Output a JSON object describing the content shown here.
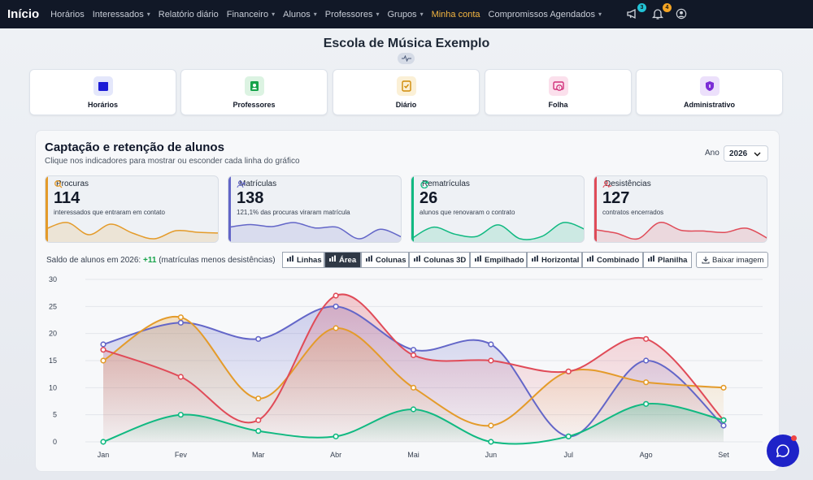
{
  "nav": {
    "brand": "Início",
    "items": [
      "Horários",
      "Interessados",
      "Relatório diário",
      "Financeiro",
      "Alunos",
      "Professores",
      "Grupos",
      "Minha conta",
      "Compromissos Agendados"
    ],
    "dropdown": [
      false,
      true,
      false,
      true,
      true,
      true,
      true,
      false,
      true
    ],
    "accent_index": 7,
    "announce_badge": "3",
    "bell_badge": "4"
  },
  "page": {
    "title": "Escola de Música Exemplo"
  },
  "quick_cards": [
    {
      "label": "Horários",
      "icon": "calendar-icon",
      "color": "#1d1dd6",
      "bg": "#e4e7fb"
    },
    {
      "label": "Professores",
      "icon": "teacher-icon",
      "color": "#16a34a",
      "bg": "#dcf3e2"
    },
    {
      "label": "Diário",
      "icon": "journal-icon",
      "color": "#d08a06",
      "bg": "#fbf0d6"
    },
    {
      "label": "Folha",
      "icon": "payroll-icon",
      "color": "#d12f7a",
      "bg": "#fbe0ec"
    },
    {
      "label": "Administrativo",
      "icon": "shield-icon",
      "color": "#7c2dd6",
      "bg": "#ece0fb"
    }
  ],
  "panel": {
    "title": "Captação e retenção de alunos",
    "subtitle": "Clique nos indicadores para mostrar ou esconder cada linha do gráfico",
    "year_label": "Ano",
    "year_value": "2026"
  },
  "kpis": [
    {
      "label": "Procuras",
      "value": "114",
      "desc": "interessados que entraram em contato",
      "color": "#e49b2a",
      "icon": "search-icon"
    },
    {
      "label": "Matrículas",
      "value": "138",
      "desc": "121,1% das procuras viraram matrícula",
      "color": "#6366c8",
      "icon": "user-plus-icon"
    },
    {
      "label": "Rematrículas",
      "value": "26",
      "desc": "alunos que renovaram o contrato",
      "color": "#10b981",
      "icon": "refresh-icon"
    },
    {
      "label": "Desistências",
      "value": "127",
      "desc": "contratos encerrados",
      "color": "#e04b58",
      "icon": "user-minus-icon"
    }
  ],
  "saldo": {
    "prefix": "Saldo de alunos em 2026:",
    "value": "+11",
    "suffix": "(matrículas menos desistências)"
  },
  "toolbar": {
    "buttons": [
      "Linhas",
      "Área",
      "Colunas",
      "Colunas 3D",
      "Empilhado",
      "Horizontal",
      "Combinado",
      "Planilha"
    ],
    "active": "Área",
    "download": "Baixar imagem"
  },
  "chart_data": {
    "type": "area",
    "categories": [
      "Jan",
      "Fev",
      "Mar",
      "Abr",
      "Mai",
      "Jun",
      "Jul",
      "Ago",
      "Set"
    ],
    "ylim": [
      0,
      30
    ],
    "yticks": [
      0,
      5,
      10,
      15,
      20,
      25,
      30
    ],
    "grid": true,
    "series": [
      {
        "name": "Procuras",
        "color": "#e49b2a",
        "values": [
          15,
          23,
          8,
          21,
          10,
          3,
          13,
          11,
          10
        ]
      },
      {
        "name": "Matrículas",
        "color": "#6366c8",
        "values": [
          18,
          22,
          19,
          25,
          17,
          18,
          1,
          15,
          3
        ]
      },
      {
        "name": "Rematrículas",
        "color": "#10b981",
        "values": [
          0,
          5,
          2,
          1,
          6,
          0,
          1,
          7,
          4
        ]
      },
      {
        "name": "Desistências",
        "color": "#e04b58",
        "values": [
          17,
          12,
          4,
          27,
          16,
          15,
          13,
          19,
          4
        ]
      }
    ]
  }
}
